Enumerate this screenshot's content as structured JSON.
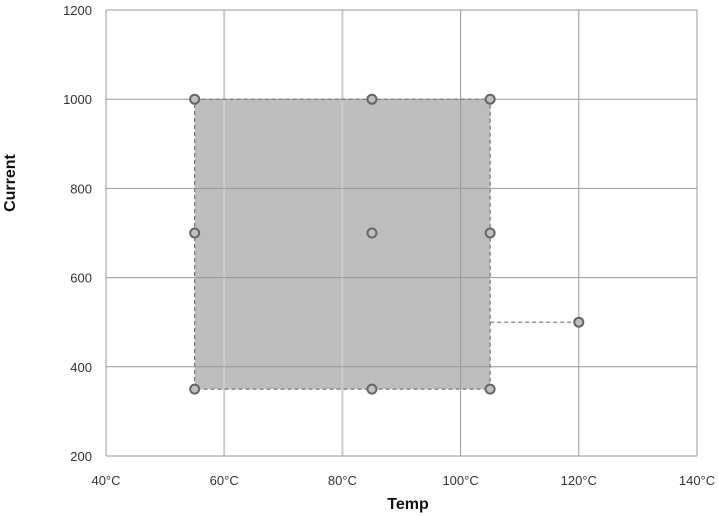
{
  "chart_data": {
    "type": "scatter",
    "title": "",
    "xlabel": "Temp",
    "ylabel": "Current",
    "xlim": [
      40,
      140
    ],
    "ylim": [
      200,
      1200
    ],
    "x_ticks": [
      {
        "value": 40,
        "label": "40°C"
      },
      {
        "value": 60,
        "label": "60°C"
      },
      {
        "value": 80,
        "label": "80°C"
      },
      {
        "value": 100,
        "label": "100°C"
      },
      {
        "value": 120,
        "label": "120°C"
      },
      {
        "value": 140,
        "label": "140°C"
      }
    ],
    "y_ticks": [
      {
        "value": 200,
        "label": "200"
      },
      {
        "value": 400,
        "label": "400"
      },
      {
        "value": 600,
        "label": "600"
      },
      {
        "value": 800,
        "label": "800"
      },
      {
        "value": 1000,
        "label": "1000"
      },
      {
        "value": 1200,
        "label": "1200"
      }
    ],
    "grid": true,
    "legend": "none",
    "points": [
      {
        "x": 55,
        "y": 1000
      },
      {
        "x": 85,
        "y": 1000
      },
      {
        "x": 105,
        "y": 1000
      },
      {
        "x": 55,
        "y": 700
      },
      {
        "x": 85,
        "y": 700
      },
      {
        "x": 105,
        "y": 700
      },
      {
        "x": 55,
        "y": 350
      },
      {
        "x": 85,
        "y": 350
      },
      {
        "x": 105,
        "y": 350
      },
      {
        "x": 120,
        "y": 500
      }
    ],
    "shaded_region": {
      "x": [
        55,
        105
      ],
      "y": [
        350,
        1000
      ]
    },
    "dashed_connector": {
      "x": [
        105,
        120
      ],
      "y": 500
    },
    "colors": {
      "region_fill": "#bdbdbd",
      "region_border": "#777777",
      "grid_minor": "#cccccc",
      "grid_major": "#999999",
      "point_stroke": "#666666",
      "point_fill": "#bfbfbf"
    }
  }
}
